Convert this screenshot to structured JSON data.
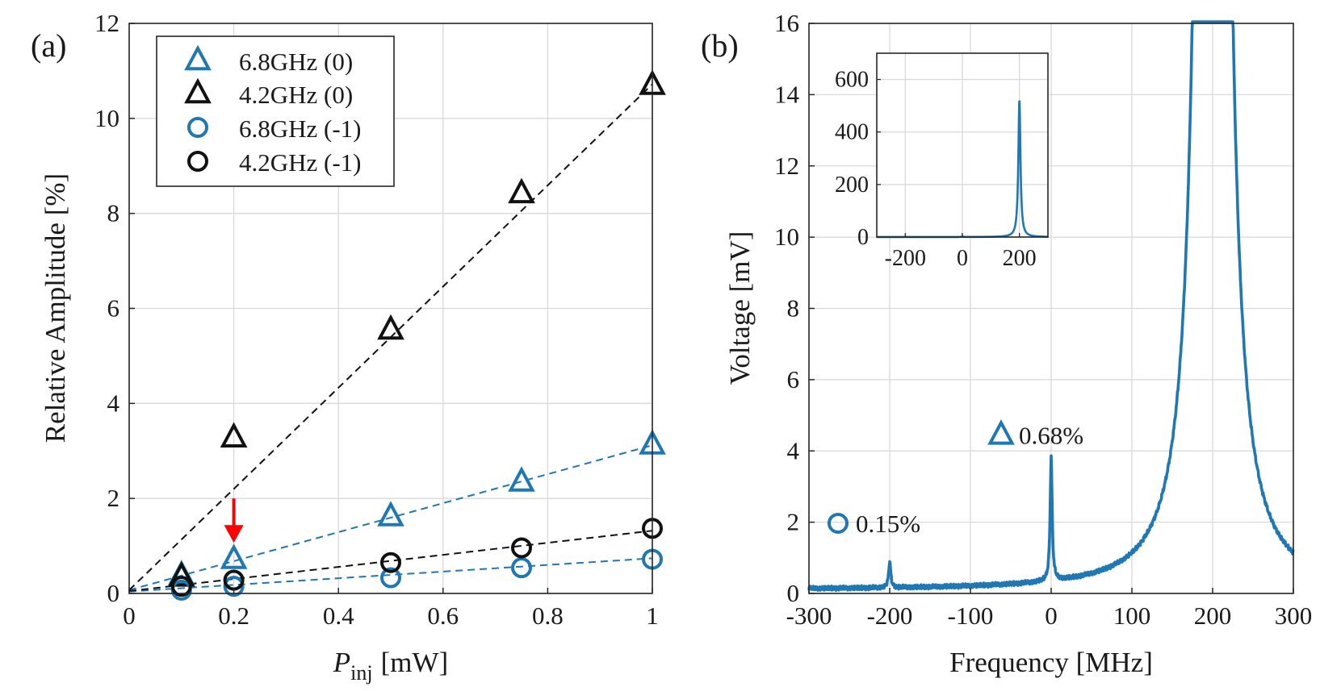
{
  "colors": {
    "blue": "#1f77b4",
    "black": "#111111",
    "red": "#ff0000"
  },
  "chart_data": [
    {
      "panel": "(a)",
      "type": "scatter",
      "xlabel": "P",
      "xlabel_sub": "inj",
      "xlabel_unit": "[mW]",
      "ylabel": "Relative Amplitude [%]",
      "xlim": [
        0,
        1
      ],
      "ylim": [
        0,
        12
      ],
      "xticks": [
        "0",
        "0.2",
        "0.4",
        "0.6",
        "0.8",
        "1"
      ],
      "yticks": [
        "0",
        "2",
        "4",
        "6",
        "8",
        "10",
        "12"
      ],
      "grid": true,
      "legend_position": "top-left",
      "series": [
        {
          "name": "6.8GHz (0)",
          "marker": "triangle",
          "color": "blue",
          "x": [
            0.1,
            0.2,
            0.5,
            0.75,
            1.0
          ],
          "y": [
            0.38,
            0.72,
            1.62,
            2.35,
            3.13
          ],
          "fit": {
            "slope": 3.05,
            "intercept": 0.07
          }
        },
        {
          "name": "4.2GHz (0)",
          "marker": "triangle",
          "color": "black",
          "x": [
            0.1,
            0.2,
            0.5,
            0.75,
            1.0
          ],
          "y": [
            0.35,
            3.28,
            5.55,
            8.42,
            10.7
          ],
          "fit": {
            "slope": 10.65,
            "intercept": 0.07
          }
        },
        {
          "name": "6.8GHz (-1)",
          "marker": "circle",
          "color": "blue",
          "x": [
            0.1,
            0.2,
            0.5,
            0.75,
            1.0
          ],
          "y": [
            0.07,
            0.15,
            0.33,
            0.54,
            0.72
          ],
          "fit": {
            "slope": 0.7,
            "intercept": 0.04
          }
        },
        {
          "name": "4.2GHz (-1)",
          "marker": "circle",
          "color": "black",
          "x": [
            0.1,
            0.2,
            0.5,
            0.75,
            1.0
          ],
          "y": [
            0.15,
            0.28,
            0.65,
            0.96,
            1.37
          ],
          "fit": {
            "slope": 1.27,
            "intercept": 0.05
          }
        }
      ],
      "annotation_arrow": {
        "x": 0.2,
        "y_from": 2.0,
        "y_to": 1.1,
        "color": "red"
      }
    },
    {
      "panel": "(b)",
      "type": "line",
      "xlabel": "Frequency [MHz]",
      "ylabel": "Voltage [mV]",
      "xlim": [
        -300,
        300
      ],
      "ylim": [
        0,
        16
      ],
      "xticks": [
        "-300",
        "-200",
        "-100",
        "0",
        "100",
        "200",
        "300"
      ],
      "yticks": [
        "0",
        "2",
        "4",
        "6",
        "8",
        "10",
        "12",
        "14",
        "16"
      ],
      "grid": true,
      "baseline": 0.1,
      "peaks": [
        {
          "f": -200,
          "height": 0.75,
          "width": 1.5
        },
        {
          "f": 0,
          "height": 3.45,
          "width": 1.5
        },
        {
          "f": 200,
          "height": 520,
          "width": 4.5
        }
      ],
      "annotations": [
        {
          "marker": "triangle",
          "color": "blue",
          "x": -62,
          "y": 4.45,
          "text": "0.68%"
        },
        {
          "marker": "circle",
          "color": "blue",
          "x": -264,
          "y": 1.97,
          "text": "0.15%"
        }
      ],
      "inset": {
        "xlim": [
          -300,
          300
        ],
        "ylim": [
          0,
          700
        ],
        "xticks": [
          "-200",
          "0",
          "200"
        ],
        "yticks": [
          "0",
          "200",
          "400",
          "600"
        ],
        "grid": true
      }
    }
  ]
}
